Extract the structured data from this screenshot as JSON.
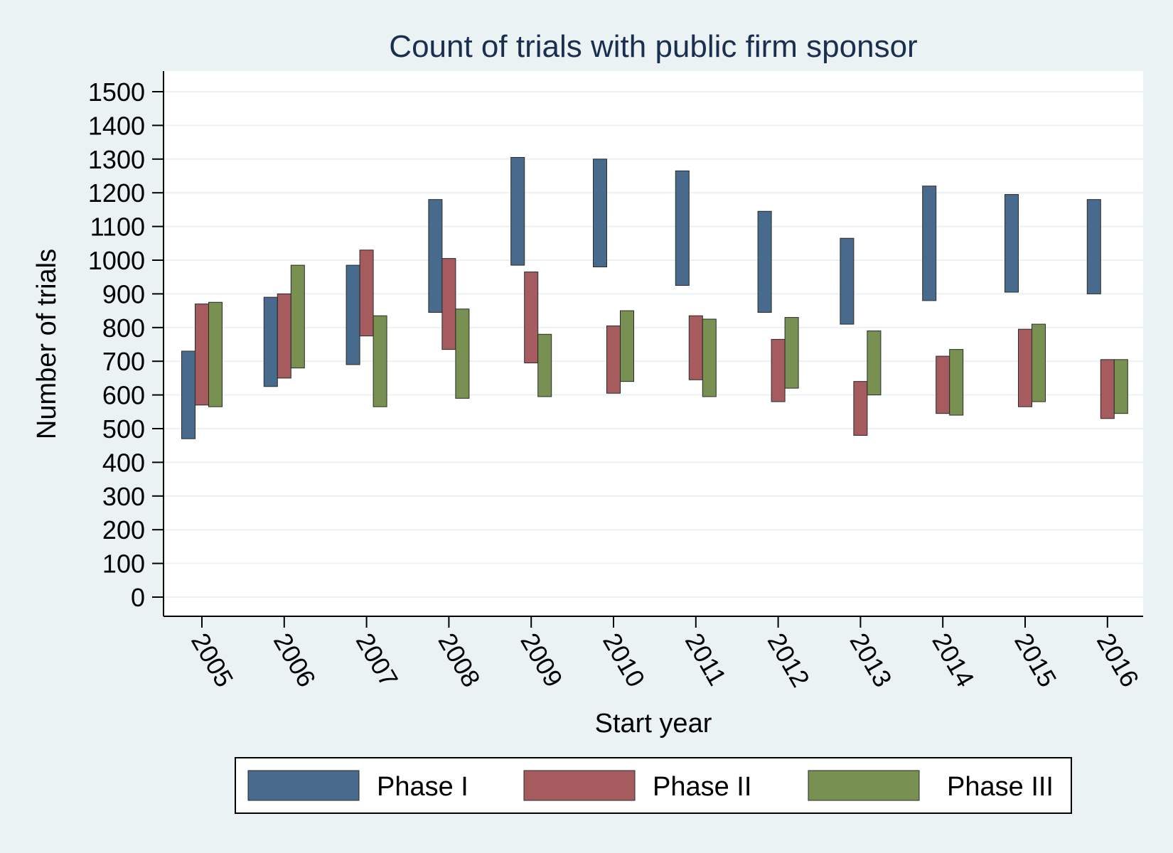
{
  "chart_data": {
    "type": "bar",
    "subtype": "floating-range",
    "title": "Count of trials with public firm sponsor",
    "xlabel": "Start year",
    "ylabel": "Number of trials",
    "ylim": [
      0,
      1500
    ],
    "yticks": [
      0,
      100,
      200,
      300,
      400,
      500,
      600,
      700,
      800,
      900,
      1000,
      1100,
      1200,
      1300,
      1400,
      1500
    ],
    "grid": true,
    "legend_position": "bottom",
    "categories": [
      "2005",
      "2006",
      "2007",
      "2008",
      "2009",
      "2010",
      "2011",
      "2012",
      "2013",
      "2014",
      "2015",
      "2016"
    ],
    "series": [
      {
        "name": "Phase I",
        "color": "#486a8c",
        "low": [
          470,
          625,
          690,
          845,
          985,
          980,
          925,
          845,
          810,
          880,
          905,
          900
        ],
        "high": [
          730,
          890,
          985,
          1180,
          1305,
          1300,
          1265,
          1145,
          1065,
          1220,
          1195,
          1180
        ]
      },
      {
        "name": "Phase II",
        "color": "#a65b5f",
        "low": [
          570,
          650,
          775,
          735,
          695,
          605,
          645,
          580,
          480,
          545,
          565,
          530
        ],
        "high": [
          870,
          900,
          1030,
          1005,
          965,
          805,
          835,
          765,
          640,
          715,
          795,
          705
        ]
      },
      {
        "name": "Phase III",
        "color": "#789152",
        "low": [
          565,
          680,
          565,
          590,
          595,
          640,
          595,
          620,
          600,
          540,
          580,
          545
        ],
        "high": [
          875,
          985,
          835,
          855,
          780,
          850,
          825,
          830,
          790,
          735,
          810,
          705
        ]
      }
    ]
  }
}
